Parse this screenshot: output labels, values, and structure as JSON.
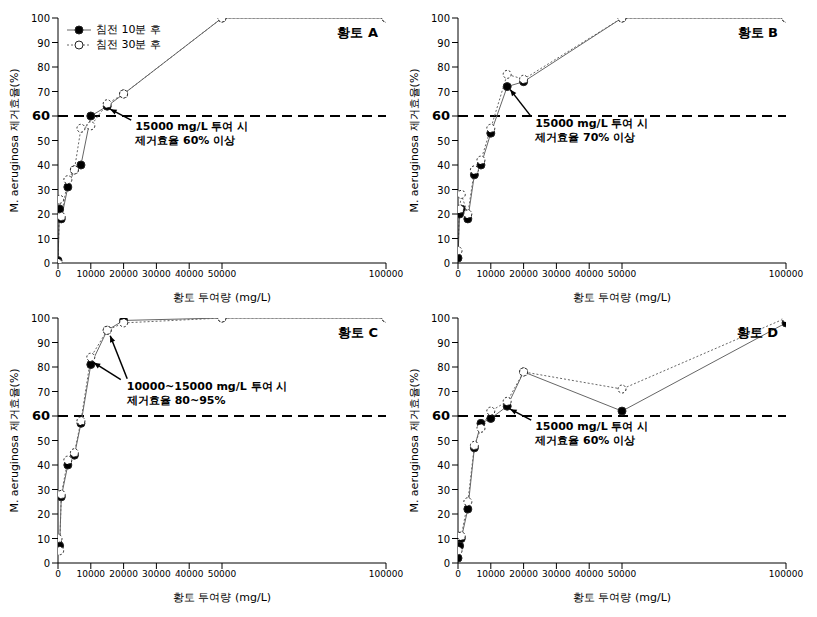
{
  "chart_data": [
    {
      "type": "line",
      "title": "황토 A",
      "x_label": "황토 투여량 (mg/L)",
      "y_label": "M. aeruginosa 제거효율(%)",
      "x": [
        0,
        500,
        1000,
        3000,
        5000,
        7000,
        10000,
        15000,
        20000,
        50000,
        100000
      ],
      "series": [
        {
          "name": "침전 10분 후",
          "color": "#000000",
          "marker": "circle",
          "line_style": "solid",
          "values": [
            1,
            22,
            18,
            31,
            38,
            40,
            60,
            64,
            69,
            100,
            100
          ]
        },
        {
          "name": "침전 30분 후",
          "color": "#ffffff",
          "marker": "circle",
          "line_style": "dotted",
          "values": [
            0,
            26,
            19,
            34,
            38,
            55,
            56,
            65,
            69,
            100,
            100
          ]
        }
      ],
      "xlim": [
        0,
        100000
      ],
      "xticks": [
        0,
        10000,
        20000,
        30000,
        40000,
        50000,
        100000
      ],
      "ylim": [
        0,
        100
      ],
      "yticks": [
        0,
        10,
        20,
        30,
        40,
        50,
        60,
        70,
        80,
        90,
        100
      ],
      "threshold": 60,
      "annotation": {
        "text": [
          "15000 mg/L 투여 시",
          "제거효율 60% 이상"
        ],
        "arrows": [
          {
            "x": 15000,
            "y": 64
          }
        ]
      },
      "legend": "upper left"
    },
    {
      "type": "line",
      "title": "황토 B",
      "x_label": "황토 투여량 (mg/L)",
      "y_label": "M. aeruginosa 제거효율(%)",
      "x": [
        0,
        500,
        1000,
        3000,
        5000,
        7000,
        10000,
        15000,
        20000,
        50000,
        100000
      ],
      "series": [
        {
          "name": "침전 10분 후",
          "color": "#000000",
          "marker": "circle",
          "line_style": "solid",
          "values": [
            2,
            20,
            22,
            18,
            36,
            40,
            53,
            72,
            74,
            100,
            100
          ]
        },
        {
          "name": "침전 30분 후",
          "color": "#ffffff",
          "marker": "circle",
          "line_style": "dotted",
          "values": [
            5,
            22,
            28,
            20,
            38,
            42,
            55,
            77,
            75,
            100,
            100
          ]
        }
      ],
      "xlim": [
        0,
        100000
      ],
      "xticks": [
        0,
        10000,
        20000,
        30000,
        40000,
        50000,
        100000
      ],
      "ylim": [
        0,
        100
      ],
      "yticks": [
        0,
        10,
        20,
        30,
        40,
        50,
        60,
        70,
        80,
        90,
        100
      ],
      "threshold": 60,
      "annotation": {
        "text": [
          "15000 mg/L 투여 시",
          "제거효율 70% 이상"
        ],
        "arrows": [
          {
            "x": 15000,
            "y": 72
          }
        ]
      }
    },
    {
      "type": "line",
      "title": "황토 C",
      "x_label": "황토 투여량 (mg/L)",
      "y_label": "M. aeruginosa 제거효율(%)",
      "x": [
        0,
        500,
        1000,
        3000,
        5000,
        7000,
        10000,
        15000,
        20000,
        50000,
        100000
      ],
      "series": [
        {
          "name": "침전 10분 후",
          "color": "#000000",
          "marker": "circle",
          "line_style": "solid",
          "values": [
            8,
            7,
            27,
            40,
            44,
            57,
            81,
            95,
            99,
            100,
            100
          ]
        },
        {
          "name": "침전 30분 후",
          "color": "#ffffff",
          "marker": "circle",
          "line_style": "dotted",
          "values": [
            10,
            5,
            28,
            42,
            45,
            58,
            84,
            95,
            98,
            100,
            100
          ]
        }
      ],
      "xlim": [
        0,
        100000
      ],
      "xticks": [
        0,
        10000,
        20000,
        30000,
        40000,
        50000,
        100000
      ],
      "ylim": [
        0,
        100
      ],
      "yticks": [
        0,
        10,
        20,
        30,
        40,
        50,
        60,
        70,
        80,
        90,
        100
      ],
      "threshold": 60,
      "annotation": {
        "text": [
          "10000~15000 mg/L 투여 시",
          "제거효율 80~95%"
        ],
        "arrows": [
          {
            "x": 10000,
            "y": 83
          },
          {
            "x": 15000,
            "y": 94
          }
        ]
      }
    },
    {
      "type": "line",
      "title": "황토 D",
      "x_label": "황토 투여량 (mg/L)",
      "y_label": "M. aeruginosa 제거효율(%)",
      "x": [
        0,
        500,
        1000,
        3000,
        5000,
        7000,
        10000,
        15000,
        20000,
        50000,
        100000
      ],
      "series": [
        {
          "name": "침전 10분 후",
          "color": "#000000",
          "marker": "circle",
          "line_style": "solid",
          "values": [
            2,
            7,
            10,
            22,
            47,
            57,
            59,
            64,
            78,
            62,
            98
          ]
        },
        {
          "name": "침전 30분 후",
          "color": "#ffffff",
          "marker": "circle",
          "line_style": "dotted",
          "values": [
            5,
            11,
            11,
            25,
            48,
            55,
            62,
            66,
            78,
            71,
            100
          ]
        }
      ],
      "xlim": [
        0,
        100000
      ],
      "xticks": [
        0,
        10000,
        20000,
        30000,
        40000,
        50000,
        100000
      ],
      "ylim": [
        0,
        100
      ],
      "yticks": [
        0,
        10,
        20,
        30,
        40,
        50,
        60,
        70,
        80,
        90,
        100
      ],
      "threshold": 60,
      "annotation": {
        "text": [
          "15000 mg/L 투여 시",
          "제거효율 60% 이상"
        ],
        "arrows": [
          {
            "x": 15000,
            "y": 64
          }
        ]
      }
    }
  ]
}
